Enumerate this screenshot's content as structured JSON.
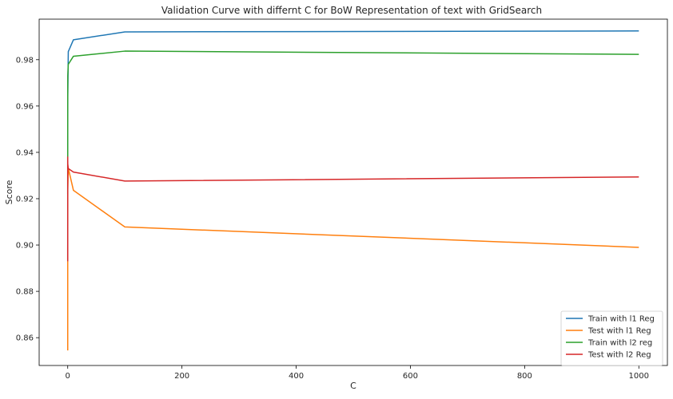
{
  "chart_data": {
    "type": "line",
    "title": "Validation Curve with differnt C for BoW Representation of text with GridSearch",
    "xlabel": "C",
    "ylabel": "Score",
    "xlim": [
      -50,
      1050
    ],
    "ylim": [
      0.848,
      0.9975
    ],
    "x_ticks": [
      0,
      200,
      400,
      600,
      800,
      1000
    ],
    "x_tick_labels": [
      "0",
      "200",
      "400",
      "600",
      "800",
      "1000"
    ],
    "y_ticks": [
      0.86,
      0.88,
      0.9,
      0.92,
      0.94,
      0.96,
      0.98
    ],
    "y_tick_labels": [
      "0.86",
      "0.88",
      "0.90",
      "0.92",
      "0.94",
      "0.96",
      "0.98"
    ],
    "grid": false,
    "legend_position": "lower-right",
    "x": [
      0.0001,
      0.001,
      0.01,
      0.1,
      1,
      10,
      100,
      1000
    ],
    "series": [
      {
        "name": "Train with l1 Reg",
        "color": "#1f77b4",
        "values": [
          0.8936,
          0.928,
          0.943,
          0.964,
          0.9835,
          0.9886,
          0.992,
          0.9924
        ]
      },
      {
        "name": "Test with l1 Reg",
        "color": "#ff7f0e",
        "values": [
          0.8545,
          0.876,
          0.895,
          0.924,
          0.9332,
          0.9236,
          0.9078,
          0.899
        ]
      },
      {
        "name": "Train with l2 reg",
        "color": "#2ca02c",
        "values": [
          0.922,
          0.948,
          0.961,
          0.973,
          0.978,
          0.9815,
          0.9837,
          0.9823
        ]
      },
      {
        "name": "Test with l2 Reg",
        "color": "#d62728",
        "values": [
          0.893,
          0.938,
          0.9375,
          0.935,
          0.933,
          0.9315,
          0.9276,
          0.9294
        ]
      }
    ]
  }
}
